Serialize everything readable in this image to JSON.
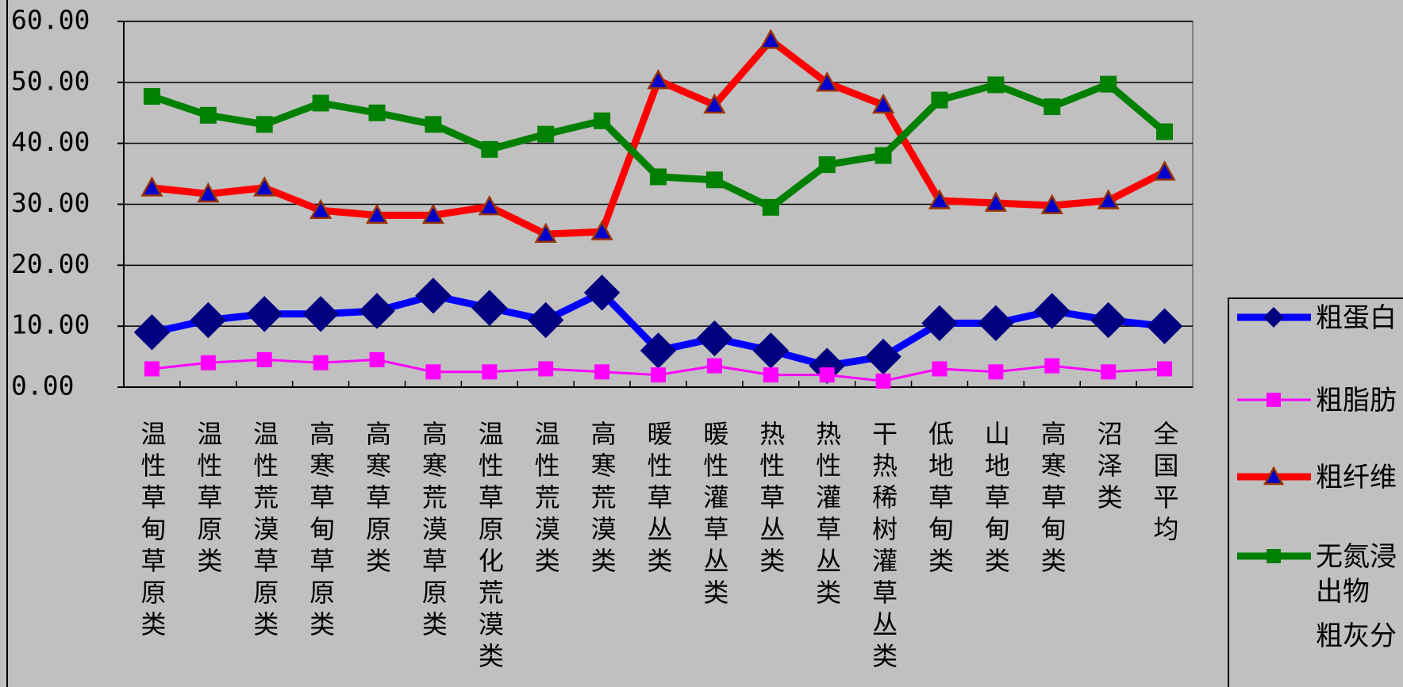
{
  "chart_data": {
    "type": "line",
    "categories": [
      "温性草甸草原类",
      "温性草原类",
      "温性荒漠草原类",
      "高寒草甸草原类",
      "高寒草原类",
      "高寒荒漠草原类",
      "温性草原化荒漠类",
      "温性荒漠类",
      "高寒荒漠类",
      "暖性草丛类",
      "暖性灌草丛类",
      "热性草丛类",
      "热性灌草丛类",
      "干热稀树灌草丛类",
      "低地草甸类",
      "山地草甸类",
      "高寒草甸类",
      "沼泽类",
      "全国平均"
    ],
    "series": [
      {
        "name": "粗蛋白",
        "color": "#0000ff",
        "marker": "diamond",
        "values": [
          9.0,
          11.0,
          12.0,
          12.0,
          12.5,
          15.0,
          13.0,
          11.0,
          15.5,
          6.0,
          8.0,
          6.0,
          3.5,
          5.0,
          10.5,
          10.5,
          12.5,
          11.0,
          10.0
        ]
      },
      {
        "name": "粗脂肪",
        "color": "#ff00ff",
        "marker": "square",
        "values": [
          3.0,
          4.0,
          4.5,
          4.0,
          4.5,
          2.5,
          2.5,
          3.0,
          2.5,
          2.0,
          3.5,
          2.0,
          2.0,
          1.0,
          3.0,
          2.5,
          3.5,
          2.5,
          3.0
        ]
      },
      {
        "name": "粗纤维",
        "color": "#ff0000",
        "marker": "triangle",
        "values": [
          32.7,
          31.7,
          32.7,
          29.0,
          28.2,
          28.2,
          29.6,
          25.1,
          25.5,
          50.3,
          46.3,
          56.9,
          49.9,
          46.3,
          30.6,
          30.2,
          29.8,
          30.6,
          35.3
        ]
      },
      {
        "name": "无氮浸出物",
        "color": "#008000",
        "marker": "square",
        "values": [
          47.7,
          44.6,
          43.1,
          46.6,
          45.0,
          43.1,
          39.0,
          41.5,
          43.7,
          34.5,
          34.0,
          29.5,
          36.5,
          38.0,
          47.1,
          49.6,
          46.0,
          49.7,
          41.9
        ]
      },
      {
        "name": "粗灰分",
        "values": [
          null,
          null,
          null,
          null,
          null,
          null,
          null,
          null,
          null,
          null,
          null,
          null,
          null,
          null,
          null,
          null,
          null,
          null,
          null
        ]
      }
    ],
    "ylim": [
      0,
      60
    ],
    "yticks": [
      {
        "value": 0,
        "label": "0.00"
      },
      {
        "value": 10,
        "label": "10.00"
      },
      {
        "value": 20,
        "label": "20.00"
      },
      {
        "value": 30,
        "label": "30.00"
      },
      {
        "value": 40,
        "label": "40.00"
      },
      {
        "value": 50,
        "label": "50.00"
      },
      {
        "value": 60,
        "label": "60.00"
      }
    ],
    "grid": true
  }
}
